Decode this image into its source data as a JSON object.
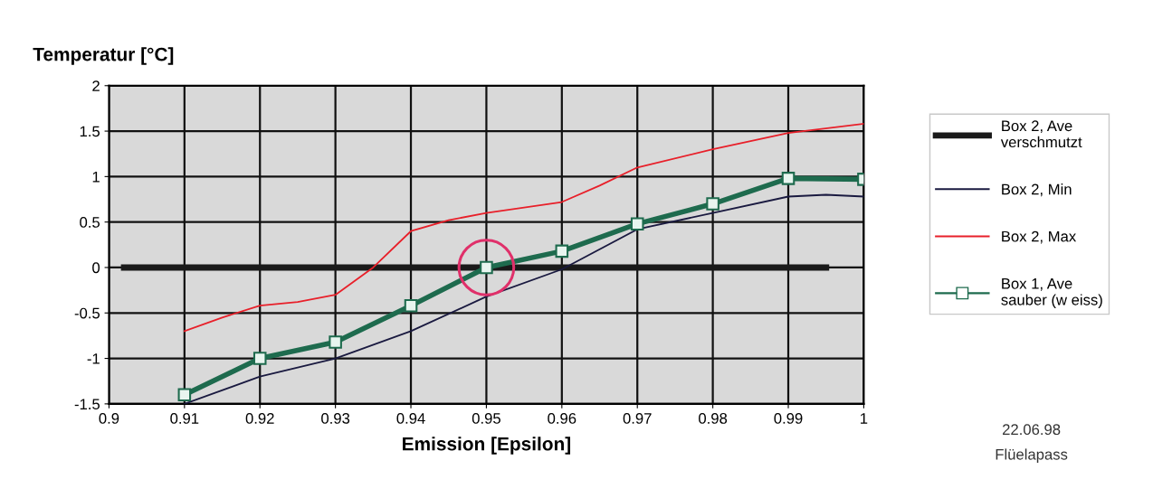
{
  "chart_data": {
    "type": "line",
    "ylabel": "Temperatur [°C]",
    "xlabel": "Emission [Epsilon]",
    "xlim": [
      0.9,
      1
    ],
    "xticks": [
      0.9,
      0.91,
      0.92,
      0.93,
      0.94,
      0.95,
      0.96,
      0.97,
      0.98,
      0.99,
      1
    ],
    "ylim": [
      -1.5,
      2
    ],
    "yticks": [
      -1.5,
      -1,
      -0.5,
      0,
      0.5,
      1,
      1.5,
      2
    ],
    "grid": true,
    "legend": "right",
    "series": [
      {
        "name": "Box 2, Ave verschmutzt",
        "color": "#1a1a1a",
        "x": [
          0.902,
          0.995
        ],
        "values": [
          0,
          0
        ]
      },
      {
        "name": "Box 2, Min",
        "color": "#1a1a40",
        "x": [
          0.91,
          0.92,
          0.93,
          0.94,
          0.95,
          0.96,
          0.97,
          0.98,
          0.99,
          0.995,
          1
        ],
        "values": [
          -1.5,
          -1.2,
          -1.0,
          -0.7,
          -0.32,
          -0.02,
          0.42,
          0.6,
          0.78,
          0.8,
          0.78
        ]
      },
      {
        "name": "Box 2, Max",
        "color": "#e8202a",
        "x": [
          0.91,
          0.915,
          0.92,
          0.925,
          0.93,
          0.935,
          0.94,
          0.945,
          0.95,
          0.96,
          0.965,
          0.97,
          0.98,
          0.99,
          1
        ],
        "values": [
          -0.7,
          -0.55,
          -0.42,
          -0.38,
          -0.3,
          0.0,
          0.4,
          0.52,
          0.6,
          0.72,
          0.9,
          1.1,
          1.3,
          1.48,
          1.58
        ]
      },
      {
        "name": "Box 1, Ave sauber (w eiss)",
        "color": "#1e6b4e",
        "marker": "square",
        "x": [
          0.91,
          0.92,
          0.93,
          0.94,
          0.95,
          0.96,
          0.97,
          0.98,
          0.99,
          1
        ],
        "values": [
          -1.4,
          -1.0,
          -0.82,
          -0.42,
          0.0,
          0.18,
          0.48,
          0.7,
          0.98,
          0.97
        ]
      },
      {
        "type": "scatter",
        "color": "#e0306a",
        "marker": "circle",
        "x": [
          0.95
        ],
        "values": [
          0
        ]
      }
    ],
    "annotations": [
      "22.06.98",
      "Flüelapass"
    ]
  }
}
